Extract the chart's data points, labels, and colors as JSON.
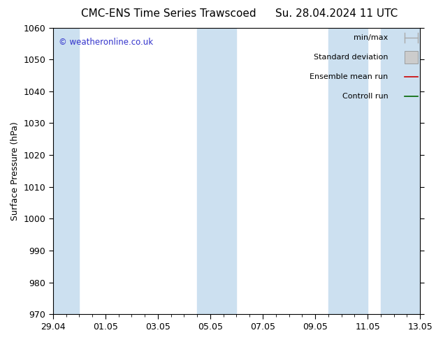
{
  "title": "CMC-ENS Time Series Trawscoed",
  "title_right": "Su. 28.04.2024 11 UTC",
  "ylabel": "Surface Pressure (hPa)",
  "ylim": [
    970,
    1060
  ],
  "yticks": [
    970,
    980,
    990,
    1000,
    1010,
    1020,
    1030,
    1040,
    1050,
    1060
  ],
  "xtick_labels": [
    "29.04",
    "01.05",
    "03.05",
    "05.05",
    "07.05",
    "09.05",
    "11.05",
    "13.05"
  ],
  "xtick_positions": [
    0,
    2,
    4,
    6,
    8,
    10,
    12,
    14
  ],
  "total_days": 14,
  "shaded_bands": [
    {
      "x_start": 0,
      "x_end": 1.0,
      "color": "#cce0f0"
    },
    {
      "x_start": 5.5,
      "x_end": 7.0,
      "color": "#cce0f0"
    },
    {
      "x_start": 10.5,
      "x_end": 12.0,
      "color": "#cce0f0"
    },
    {
      "x_start": 12.5,
      "x_end": 14.0,
      "color": "#cce0f0"
    }
  ],
  "watermark_text": "© weatheronline.co.uk",
  "watermark_color": "#3333cc",
  "background_color": "#ffffff",
  "plot_bg_color": "#ffffff",
  "legend_items": [
    {
      "label": "min/max",
      "color": "#aaaaaa",
      "style": "minmax"
    },
    {
      "label": "Standard deviation",
      "color": "#cccccc",
      "style": "rect"
    },
    {
      "label": "Ensemble mean run",
      "color": "#cc0000",
      "style": "line"
    },
    {
      "label": "Controll run",
      "color": "#006600",
      "style": "line"
    }
  ],
  "title_fontsize": 11,
  "tick_label_fontsize": 9,
  "axis_label_fontsize": 9,
  "legend_fontsize": 8
}
